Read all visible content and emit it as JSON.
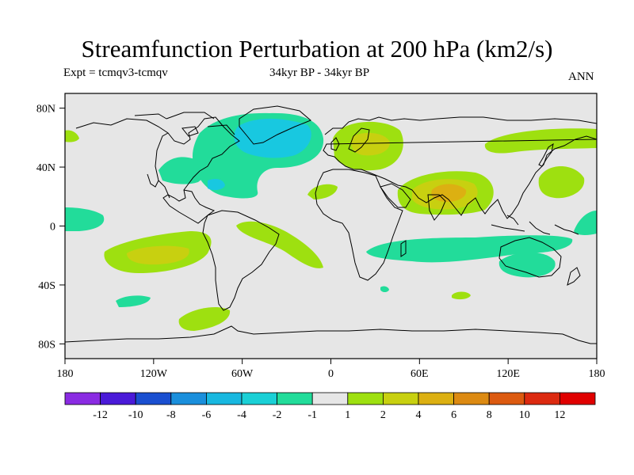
{
  "title": "Streamfunction Perturbation at 200 hPa (km2/s)",
  "subtitle_left": "Expt = tcmqv3-tcmqv",
  "subtitle_center": "34kyr BP - 34kyr BP",
  "subtitle_right": "ANN",
  "latitude_ticks": [
    {
      "value": 80,
      "label": "80N"
    },
    {
      "value": 40,
      "label": "40N"
    },
    {
      "value": 0,
      "label": "0"
    },
    {
      "value": -40,
      "label": "40S"
    },
    {
      "value": -80,
      "label": "80S"
    }
  ],
  "longitude_ticks": [
    {
      "value": -180,
      "label": "180"
    },
    {
      "value": -120,
      "label": "120W"
    },
    {
      "value": -60,
      "label": "60W"
    },
    {
      "value": 0,
      "label": "0"
    },
    {
      "value": 60,
      "label": "60E"
    },
    {
      "value": 120,
      "label": "120E"
    },
    {
      "value": 180,
      "label": "180"
    }
  ],
  "lat_range": [
    -90,
    90
  ],
  "lon_range": [
    -180,
    180
  ],
  "colorbar": {
    "labels": [
      "-12",
      "-10",
      "-8",
      "-6",
      "-4",
      "-2",
      "-1",
      "1",
      "2",
      "4",
      "6",
      "8",
      "10",
      "12"
    ],
    "colors": [
      "#8a2be2",
      "#4a1ad8",
      "#1a4fd0",
      "#1a8fdc",
      "#18b8e0",
      "#1ad0d6",
      "#22dc9a",
      "#e6e6e6",
      "#9ee010",
      "#c8d010",
      "#dcb012",
      "#dc8a12",
      "#dc5a10",
      "#dc2a10",
      "#e00000"
    ]
  },
  "colors": {
    "land_outline": "#000000",
    "background": "#e6e6e6",
    "level_neg_4": "#18c8e0",
    "level_neg_2": "#22dc9a",
    "level_pos_2": "#9ee010",
    "level_pos_4": "#c8d010",
    "level_pos_6": "#dcb012"
  }
}
